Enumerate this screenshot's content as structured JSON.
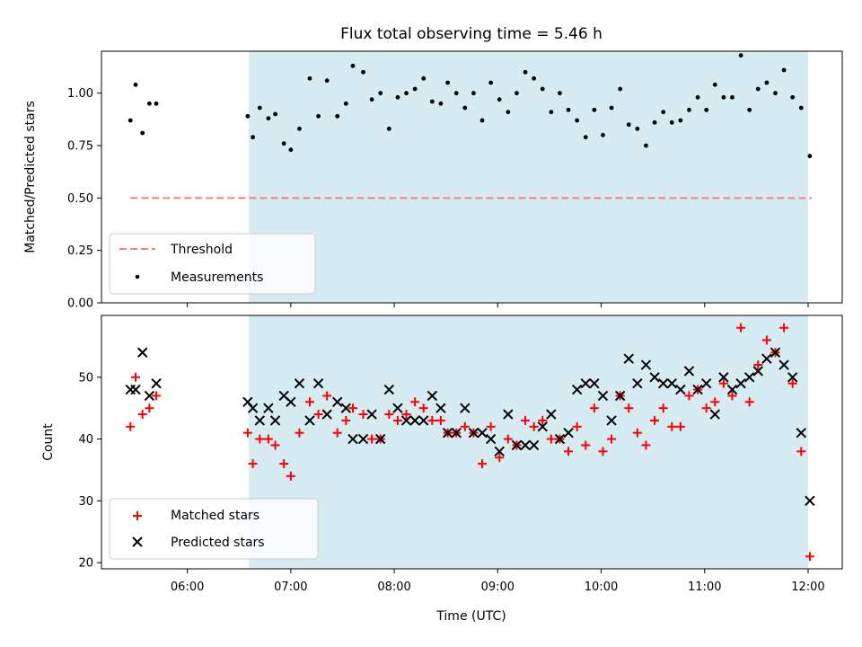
{
  "chart_data": {
    "type": "scatter",
    "title": "Flux total observing time = 5.46 h",
    "xlabel": "Time (UTC)",
    "x_ticks": [
      "06:00",
      "07:00",
      "08:00",
      "09:00",
      "10:00",
      "11:00",
      "12:00"
    ],
    "x_range_hours": [
      5.17,
      12.33
    ],
    "observing_window": [
      "06:33",
      "12:02"
    ],
    "panels": [
      {
        "ylabel": "Matched/Predicted stars",
        "ylim": [
          0,
          1.2
        ],
        "y_ticks": [
          "0.00",
          "0.25",
          "0.50",
          "0.75",
          "1.00"
        ],
        "legend_placement": "lower-left",
        "series": [
          {
            "name": "Threshold",
            "kind": "dashed-line",
            "color": "#f08080",
            "x": [
              "05:27",
              "12:02"
            ],
            "y": [
              0.5,
              0.5
            ]
          },
          {
            "name": "Measurements",
            "kind": "dot",
            "color": "#000000",
            "x": [
              "05:27",
              "05:30",
              "05:34",
              "05:38",
              "05:42",
              "06:35",
              "06:38",
              "06:42",
              "06:47",
              "06:51",
              "06:56",
              "07:00",
              "07:05",
              "07:11",
              "07:16",
              "07:21",
              "07:27",
              "07:32",
              "07:36",
              "07:42",
              "07:47",
              "07:52",
              "07:57",
              "08:02",
              "08:07",
              "08:12",
              "08:17",
              "08:22",
              "08:27",
              "08:31",
              "08:36",
              "08:41",
              "08:46",
              "08:51",
              "08:56",
              "09:01",
              "09:06",
              "09:11",
              "09:16",
              "09:21",
              "09:26",
              "09:31",
              "09:36",
              "09:41",
              "09:46",
              "09:51",
              "09:56",
              "10:01",
              "10:06",
              "10:11",
              "10:16",
              "10:21",
              "10:26",
              "10:31",
              "10:36",
              "10:41",
              "10:46",
              "10:51",
              "10:56",
              "11:01",
              "11:06",
              "11:11",
              "11:16",
              "11:21",
              "11:26",
              "11:31",
              "11:36",
              "11:41",
              "11:46",
              "11:51",
              "11:56",
              "12:01"
            ],
            "y": [
              0.87,
              1.04,
              0.81,
              0.95,
              0.95,
              0.89,
              0.79,
              0.93,
              0.88,
              0.9,
              0.76,
              0.73,
              0.83,
              1.07,
              0.89,
              1.06,
              0.89,
              0.95,
              1.13,
              1.1,
              0.97,
              1.0,
              0.83,
              0.98,
              1.0,
              1.02,
              1.07,
              0.96,
              0.95,
              1.05,
              1.0,
              0.93,
              1.0,
              0.87,
              1.05,
              0.97,
              0.91,
              1.0,
              1.1,
              1.07,
              1.02,
              0.91,
              1.0,
              0.92,
              0.87,
              0.79,
              0.92,
              0.8,
              0.93,
              1.02,
              0.85,
              0.83,
              0.75,
              0.86,
              0.91,
              0.86,
              0.87,
              0.92,
              0.98,
              0.92,
              1.04,
              0.98,
              0.98,
              1.18,
              0.92,
              1.02,
              1.05,
              1.0,
              1.11,
              0.98,
              0.93,
              0.7
            ]
          }
        ]
      },
      {
        "ylabel": "Count",
        "ylim": [
          19,
          60
        ],
        "y_ticks": [
          "20",
          "30",
          "40",
          "50"
        ],
        "legend_placement": "lower-left",
        "series": [
          {
            "name": "Matched stars",
            "kind": "plus",
            "color": "#ff0000",
            "x": [
              "05:27",
              "05:30",
              "05:34",
              "05:38",
              "05:42",
              "06:35",
              "06:38",
              "06:42",
              "06:47",
              "06:51",
              "06:56",
              "07:00",
              "07:05",
              "07:11",
              "07:16",
              "07:21",
              "07:27",
              "07:32",
              "07:36",
              "07:42",
              "07:47",
              "07:52",
              "07:57",
              "08:02",
              "08:07",
              "08:12",
              "08:17",
              "08:22",
              "08:27",
              "08:31",
              "08:36",
              "08:41",
              "08:46",
              "08:51",
              "08:56",
              "09:01",
              "09:06",
              "09:11",
              "09:16",
              "09:21",
              "09:26",
              "09:31",
              "09:36",
              "09:41",
              "09:46",
              "09:51",
              "09:56",
              "10:01",
              "10:06",
              "10:11",
              "10:16",
              "10:21",
              "10:26",
              "10:31",
              "10:36",
              "10:41",
              "10:46",
              "10:51",
              "10:56",
              "11:01",
              "11:06",
              "11:11",
              "11:16",
              "11:21",
              "11:26",
              "11:31",
              "11:36",
              "11:41",
              "11:46",
              "11:51",
              "11:56",
              "12:01"
            ],
            "y": [
              42,
              50,
              44,
              45,
              47,
              41,
              36,
              40,
              40,
              39,
              36,
              34,
              41,
              46,
              44,
              47,
              41,
              43,
              45,
              44,
              40,
              40,
              44,
              43,
              44,
              46,
              45,
              43,
              43,
              41,
              41,
              42,
              41,
              36,
              42,
              37,
              40,
              39,
              43,
              42,
              43,
              40,
              40,
              38,
              42,
              39,
              45,
              38,
              40,
              47,
              45,
              41,
              39,
              43,
              45,
              42,
              42,
              47,
              48,
              45,
              46,
              49,
              47,
              58,
              46,
              52,
              56,
              54,
              58,
              49,
              38,
              21
            ]
          },
          {
            "name": "Predicted stars",
            "kind": "cross",
            "color": "#000000",
            "x": [
              "05:27",
              "05:30",
              "05:34",
              "05:38",
              "05:42",
              "06:35",
              "06:38",
              "06:42",
              "06:47",
              "06:51",
              "06:56",
              "07:00",
              "07:05",
              "07:11",
              "07:16",
              "07:21",
              "07:27",
              "07:32",
              "07:36",
              "07:42",
              "07:47",
              "07:52",
              "07:57",
              "08:02",
              "08:07",
              "08:12",
              "08:17",
              "08:22",
              "08:27",
              "08:31",
              "08:36",
              "08:41",
              "08:46",
              "08:51",
              "08:56",
              "09:01",
              "09:06",
              "09:11",
              "09:16",
              "09:21",
              "09:26",
              "09:31",
              "09:36",
              "09:41",
              "09:46",
              "09:51",
              "09:56",
              "10:01",
              "10:06",
              "10:11",
              "10:16",
              "10:21",
              "10:26",
              "10:31",
              "10:36",
              "10:41",
              "10:46",
              "10:51",
              "10:56",
              "11:01",
              "11:06",
              "11:11",
              "11:16",
              "11:21",
              "11:26",
              "11:31",
              "11:36",
              "11:41",
              "11:46",
              "11:51",
              "11:56",
              "12:01"
            ],
            "y": [
              48,
              48,
              54,
              47,
              49,
              46,
              45,
              43,
              45,
              43,
              47,
              46,
              49,
              43,
              49,
              44,
              46,
              45,
              40,
              40,
              44,
              40,
              48,
              45,
              43,
              43,
              43,
              47,
              45,
              41,
              41,
              45,
              41,
              41,
              40,
              38,
              44,
              39,
              39,
              39,
              42,
              44,
              40,
              41,
              48,
              49,
              49,
              47,
              43,
              47,
              53,
              49,
              52,
              50,
              49,
              49,
              48,
              51,
              48,
              49,
              44,
              50,
              48,
              49,
              50,
              51,
              53,
              54,
              52,
              50,
              41,
              30
            ]
          }
        ]
      }
    ]
  }
}
